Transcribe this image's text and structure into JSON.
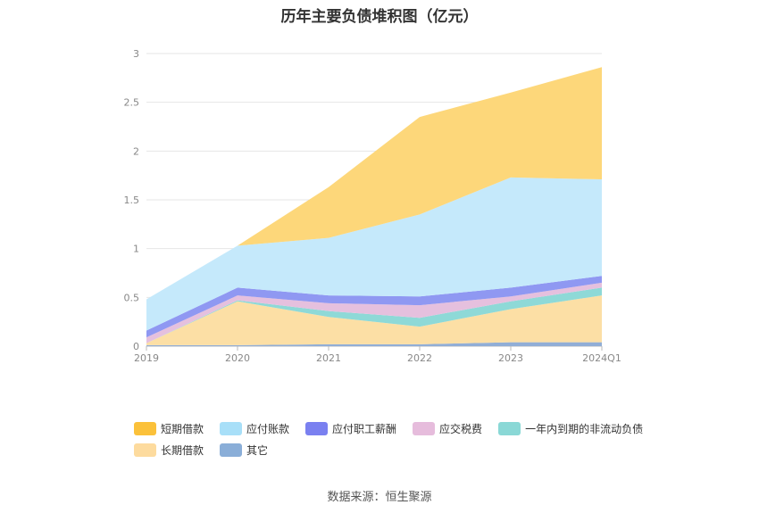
{
  "title": "历年主要负债堆积图（亿元）",
  "source": "数据来源：恒生聚源",
  "chart_data": {
    "type": "area",
    "stacked": true,
    "categories": [
      "2019",
      "2020",
      "2021",
      "2022",
      "2023",
      "2024Q1"
    ],
    "ylim": [
      0,
      3
    ],
    "yticks": [
      "0",
      "0.5",
      "1",
      "1.5",
      "2",
      "2.5",
      "3"
    ],
    "grid": true,
    "legend_position": "bottom",
    "series": [
      {
        "name": "其它",
        "color": "#91aed6",
        "values": [
          0.01,
          0.01,
          0.02,
          0.02,
          0.04,
          0.04
        ]
      },
      {
        "name": "长期借款",
        "color": "#fcdfa5",
        "values": [
          0.02,
          0.45,
          0.28,
          0.18,
          0.34,
          0.48
        ]
      },
      {
        "name": "一年内到期的非流动负债",
        "color": "#8ed9d7",
        "values": [
          0,
          0.01,
          0.06,
          0.09,
          0.08,
          0.08
        ]
      },
      {
        "name": "应交税费",
        "color": "#e5c0de",
        "values": [
          0.06,
          0.05,
          0.08,
          0.13,
          0.05,
          0.05
        ]
      },
      {
        "name": "应付职工薪酬",
        "color": "#8f98f2",
        "values": [
          0.07,
          0.08,
          0.08,
          0.09,
          0.09,
          0.07
        ]
      },
      {
        "name": "应付账款",
        "color": "#c5e9fb",
        "values": [
          0.32,
          0.43,
          0.59,
          0.84,
          1.13,
          0.99
        ]
      },
      {
        "name": "短期借款",
        "color": "#fdd77a",
        "values": [
          0,
          0,
          0.52,
          1.0,
          0.87,
          1.15
        ]
      }
    ],
    "legend": [
      {
        "name": "短期借款",
        "color": "#fbc13a"
      },
      {
        "name": "应付账款",
        "color": "#a8dff8"
      },
      {
        "name": "应付职工薪酬",
        "color": "#7a80f0"
      },
      {
        "name": "应交税费",
        "color": "#e6bcdc"
      },
      {
        "name": "一年内到期的非流动负债",
        "color": "#8ad8d6"
      },
      {
        "name": "长期借款",
        "color": "#fddb9e"
      },
      {
        "name": "其它",
        "color": "#8aaed8"
      }
    ]
  }
}
